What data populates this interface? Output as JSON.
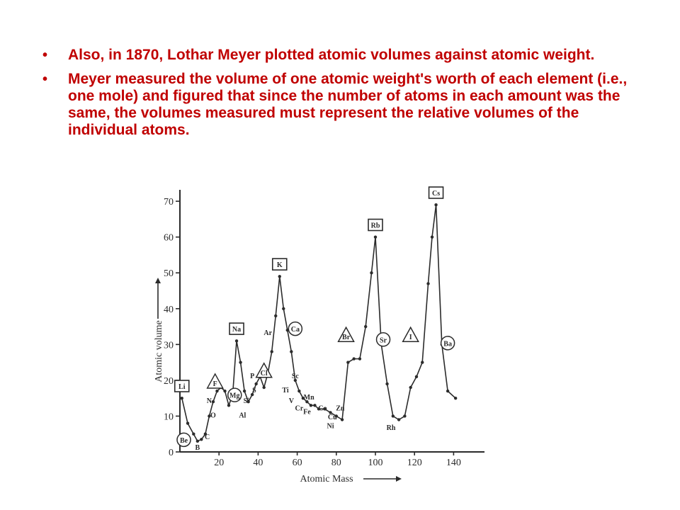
{
  "slide": {
    "bullets": [
      "Also, in 1870, Lothar Meyer plotted atomic volumes against atomic weight.",
      " Meyer measured the volume of one atomic weight's worth of each element (i.e., one mole) and figured that since the number of atoms in each amount was the same, the volumes measured must represent the relative volumes of the individual atoms."
    ],
    "bullet_glyph": "•",
    "text_color": "#c00000"
  },
  "chart_data": {
    "type": "line",
    "xlabel": "Atomic Mass",
    "ylabel": "Atomic volume",
    "xlim": [
      0,
      150
    ],
    "ylim": [
      0,
      72
    ],
    "xticks": [
      20,
      40,
      60,
      80,
      100,
      120,
      140
    ],
    "yticks": [
      0,
      10,
      20,
      30,
      40,
      50,
      60,
      70
    ],
    "grid": false,
    "line_color": "#2b2b2b",
    "series": [
      {
        "points": [
          {
            "x": 1,
            "y": 15
          },
          {
            "x": 4,
            "y": 8
          },
          {
            "x": 7,
            "y": 5
          },
          {
            "x": 9,
            "y": 3
          },
          {
            "x": 11,
            "y": 3.5
          },
          {
            "x": 13,
            "y": 5
          },
          {
            "x": 15,
            "y": 10
          },
          {
            "x": 17,
            "y": 14
          },
          {
            "x": 19,
            "y": 17
          },
          {
            "x": 21,
            "y": 18
          },
          {
            "x": 23,
            "y": 17
          },
          {
            "x": 25,
            "y": 13
          },
          {
            "x": 27,
            "y": 16
          },
          {
            "x": 29,
            "y": 31
          },
          {
            "x": 31,
            "y": 25
          },
          {
            "x": 33,
            "y": 17
          },
          {
            "x": 35,
            "y": 14
          },
          {
            "x": 37,
            "y": 16
          },
          {
            "x": 39,
            "y": 19
          },
          {
            "x": 41,
            "y": 21
          },
          {
            "x": 43,
            "y": 18
          },
          {
            "x": 45,
            "y": 22
          },
          {
            "x": 47,
            "y": 28
          },
          {
            "x": 49,
            "y": 38
          },
          {
            "x": 51,
            "y": 49
          },
          {
            "x": 53,
            "y": 40
          },
          {
            "x": 55,
            "y": 34
          },
          {
            "x": 57,
            "y": 28
          },
          {
            "x": 59,
            "y": 20
          },
          {
            "x": 61,
            "y": 17
          },
          {
            "x": 63,
            "y": 15
          },
          {
            "x": 65,
            "y": 14
          },
          {
            "x": 67,
            "y": 13
          },
          {
            "x": 69,
            "y": 13
          },
          {
            "x": 71,
            "y": 12
          },
          {
            "x": 74,
            "y": 12
          },
          {
            "x": 77,
            "y": 11
          },
          {
            "x": 80,
            "y": 10
          },
          {
            "x": 83,
            "y": 9
          },
          {
            "x": 86,
            "y": 25
          },
          {
            "x": 89,
            "y": 26
          },
          {
            "x": 92,
            "y": 26
          },
          {
            "x": 95,
            "y": 35
          },
          {
            "x": 98,
            "y": 50
          },
          {
            "x": 100,
            "y": 60
          },
          {
            "x": 103,
            "y": 30
          },
          {
            "x": 106,
            "y": 19
          },
          {
            "x": 109,
            "y": 10
          },
          {
            "x": 112,
            "y": 9
          },
          {
            "x": 115,
            "y": 10
          },
          {
            "x": 118,
            "y": 18
          },
          {
            "x": 121,
            "y": 21
          },
          {
            "x": 124,
            "y": 25
          },
          {
            "x": 127,
            "y": 47
          },
          {
            "x": 129,
            "y": 60
          },
          {
            "x": 131,
            "y": 69
          },
          {
            "x": 134,
            "y": 30
          },
          {
            "x": 137,
            "y": 17
          },
          {
            "x": 141,
            "y": 15
          }
        ]
      }
    ],
    "annotations": [
      {
        "text": "Li",
        "x": 1,
        "y": 15,
        "shape": "box",
        "dx": 0,
        "dy": 3
      },
      {
        "text": "Be",
        "x": 4,
        "y": 3,
        "shape": "circle",
        "dx": -2,
        "dy": 0
      },
      {
        "text": "B",
        "x": 9,
        "y": 1,
        "shape": "none",
        "dx": 0,
        "dy": 0
      },
      {
        "text": "C",
        "x": 14,
        "y": 5,
        "shape": "none",
        "dx": 0,
        "dy": -1
      },
      {
        "text": "N",
        "x": 15,
        "y": 14,
        "shape": "none",
        "dx": 0,
        "dy": 0
      },
      {
        "text": "O",
        "x": 17,
        "y": 10,
        "shape": "none",
        "dx": 0,
        "dy": 0
      },
      {
        "text": "F",
        "x": 18,
        "y": 18,
        "shape": "triangle",
        "dx": 0,
        "dy": 1
      },
      {
        "text": "Na",
        "x": 29,
        "y": 31,
        "shape": "box",
        "dx": 0,
        "dy": 3
      },
      {
        "text": "Mg",
        "x": 28,
        "y": 16,
        "shape": "circle",
        "dx": 0,
        "dy": -0.5
      },
      {
        "text": "Al",
        "x": 32,
        "y": 10,
        "shape": "none",
        "dx": 0,
        "dy": 0
      },
      {
        "text": "Si",
        "x": 34,
        "y": 14,
        "shape": "none",
        "dx": 0,
        "dy": 0
      },
      {
        "text": "P",
        "x": 37,
        "y": 21,
        "shape": "none",
        "dx": 0,
        "dy": 0
      },
      {
        "text": "S",
        "x": 38,
        "y": 17,
        "shape": "none",
        "dx": 0,
        "dy": 0
      },
      {
        "text": "Cl",
        "x": 43,
        "y": 22,
        "shape": "triangle",
        "dx": 0,
        "dy": 0
      },
      {
        "text": "Ar",
        "x": 45,
        "y": 33,
        "shape": "none",
        "dx": 0,
        "dy": 0
      },
      {
        "text": "K",
        "x": 51,
        "y": 49,
        "shape": "box",
        "dx": 0,
        "dy": 3
      },
      {
        "text": "Ca",
        "x": 59,
        "y": 34,
        "shape": "circle",
        "dx": 0,
        "dy": 0
      },
      {
        "text": "Sc",
        "x": 59,
        "y": 21,
        "shape": "none",
        "dx": 0,
        "dy": 0
      },
      {
        "text": "Ti",
        "x": 54,
        "y": 17,
        "shape": "none",
        "dx": 0,
        "dy": 0
      },
      {
        "text": "V",
        "x": 57,
        "y": 14,
        "shape": "none",
        "dx": 0,
        "dy": 0
      },
      {
        "text": "Cr",
        "x": 61,
        "y": 12,
        "shape": "none",
        "dx": 0,
        "dy": 0
      },
      {
        "text": "Mn",
        "x": 66,
        "y": 15,
        "shape": "none",
        "dx": 0,
        "dy": 0
      },
      {
        "text": "Fe",
        "x": 65,
        "y": 11,
        "shape": "none",
        "dx": 0,
        "dy": 0
      },
      {
        "text": "Co",
        "x": 73,
        "y": 12,
        "shape": "none",
        "dx": 0,
        "dy": 0
      },
      {
        "text": "Ni",
        "x": 77,
        "y": 7,
        "shape": "none",
        "dx": 0,
        "dy": 0
      },
      {
        "text": "Cu",
        "x": 78,
        "y": 9.5,
        "shape": "none",
        "dx": 0,
        "dy": 0
      },
      {
        "text": "Zn",
        "x": 82,
        "y": 12,
        "shape": "none",
        "dx": 0,
        "dy": 0
      },
      {
        "text": "Br",
        "x": 85,
        "y": 32,
        "shape": "triangle",
        "dx": 0,
        "dy": 0
      },
      {
        "text": "Rb",
        "x": 100,
        "y": 60,
        "shape": "box",
        "dx": 0,
        "dy": 3
      },
      {
        "text": "Sr",
        "x": 104,
        "y": 31,
        "shape": "circle",
        "dx": 0,
        "dy": 0
      },
      {
        "text": "Rh",
        "x": 108,
        "y": 6.5,
        "shape": "none",
        "dx": 0,
        "dy": 0
      },
      {
        "text": "I",
        "x": 118,
        "y": 32,
        "shape": "triangle",
        "dx": 0,
        "dy": 0
      },
      {
        "text": "Cs",
        "x": 131,
        "y": 69,
        "shape": "box",
        "dx": 0,
        "dy": 3
      },
      {
        "text": "Ba",
        "x": 137,
        "y": 30,
        "shape": "circle",
        "dx": 0,
        "dy": 0
      }
    ]
  }
}
